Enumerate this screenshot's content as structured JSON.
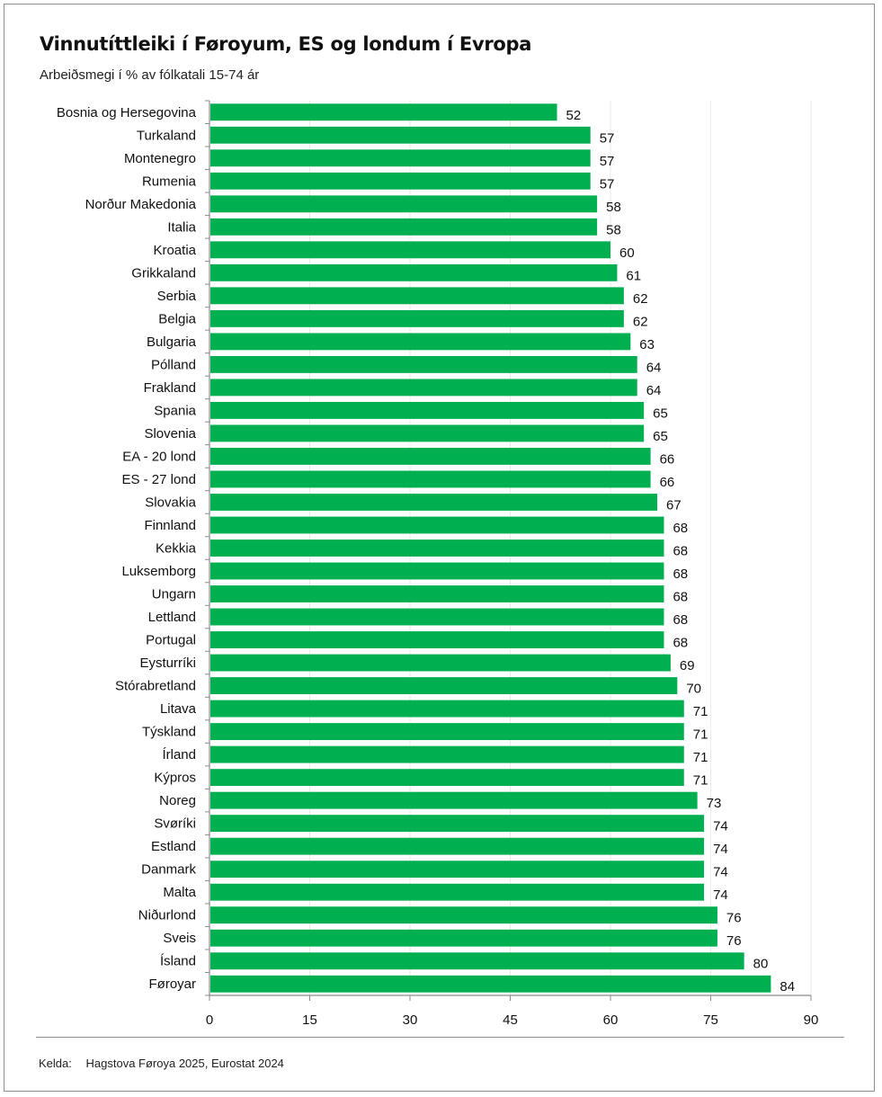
{
  "chart_data": {
    "type": "bar",
    "orientation": "horizontal",
    "title": "Vinnutíttleiki í Føroyum, ES og londum í Evropa",
    "subtitle": "Arbeiðsmegi í % av fólkatali 15-74 ár",
    "xlabel": "",
    "ylabel": "",
    "xlim": [
      0,
      90
    ],
    "x_ticks": [
      0,
      15,
      30,
      45,
      60,
      75,
      90
    ],
    "grid": true,
    "bar_color": "#00b050",
    "categories": [
      "Bosnia og Hersegovina",
      "Turkaland",
      "Montenegro",
      "Rumenia",
      "Norður Makedonia",
      "Italia",
      "Kroatia",
      "Grikkaland",
      "Serbia",
      "Belgia",
      "Bulgaria",
      "Pólland",
      "Frakland",
      "Spania",
      "Slovenia",
      "EA - 20 lond",
      "ES - 27 lond",
      "Slovakia",
      "Finnland",
      "Kekkia",
      "Luksemborg",
      "Ungarn",
      "Lettland",
      "Portugal",
      "Eysturríki",
      "Stórabretland",
      "Litava",
      "Týskland",
      "Írland",
      "Kýpros",
      "Noreg",
      "Svøríki",
      "Estland",
      "Danmark",
      "Malta",
      "Niðurlond",
      "Sveis",
      "Ísland",
      "Føroyar"
    ],
    "values": [
      52,
      57,
      57,
      57,
      58,
      58,
      60,
      61,
      62,
      62,
      63,
      64,
      64,
      65,
      65,
      66,
      66,
      67,
      68,
      68,
      68,
      68,
      68,
      68,
      69,
      70,
      71,
      71,
      71,
      71,
      73,
      74,
      74,
      74,
      74,
      76,
      76,
      80,
      84
    ],
    "data_labels": [
      "52",
      "57",
      "57",
      "57",
      "58",
      "58",
      "60",
      "61",
      "62",
      "62",
      "63",
      "64",
      "64",
      "65",
      "65",
      "66",
      "66",
      "67",
      "68",
      "68",
      "68",
      "68",
      "68",
      "68",
      "69",
      "70",
      "71",
      "71",
      "71",
      "71",
      "73",
      "74",
      "74",
      "74",
      "74",
      "76",
      "76",
      "80",
      "84"
    ]
  },
  "source": {
    "key": "Kelda:",
    "text": "Hagstova Føroya 2025, Eurostat 2024"
  }
}
